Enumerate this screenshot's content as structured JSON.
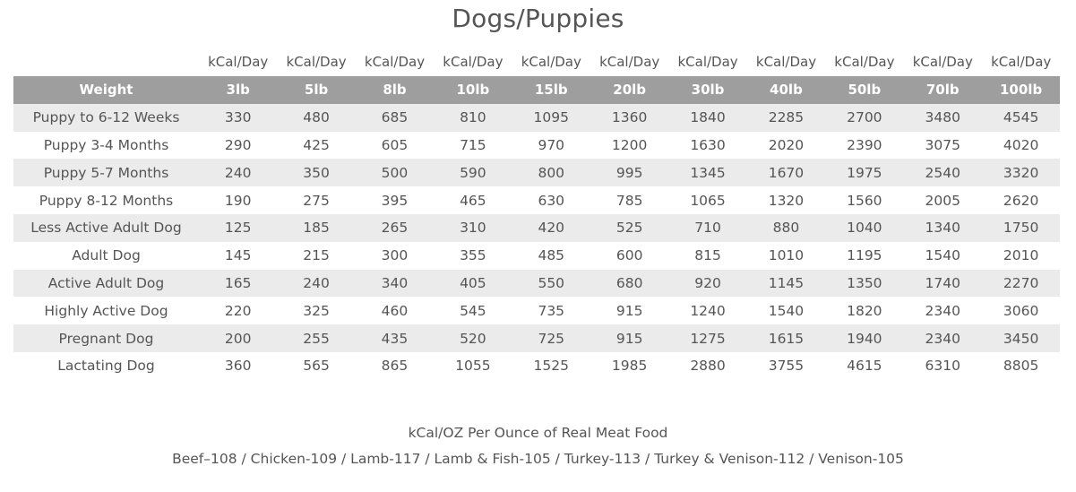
{
  "title": "Dogs/Puppies",
  "unit_label": "kCal/Day",
  "header": {
    "first": "Weight",
    "weights": [
      "3lb",
      "5lb",
      "8lb",
      "10lb",
      "15lb",
      "20lb",
      "30lb",
      "40lb",
      "50lb",
      "70lb",
      "100lb"
    ]
  },
  "rows": [
    {
      "label": "Puppy to 6-12 Weeks",
      "values": [
        "330",
        "480",
        "685",
        "810",
        "1095",
        "1360",
        "1840",
        "2285",
        "2700",
        "3480",
        "4545"
      ]
    },
    {
      "label": "Puppy 3-4 Months",
      "values": [
        "290",
        "425",
        "605",
        "715",
        "970",
        "1200",
        "1630",
        "2020",
        "2390",
        "3075",
        "4020"
      ]
    },
    {
      "label": "Puppy 5-7 Months",
      "values": [
        "240",
        "350",
        "500",
        "590",
        "800",
        "995",
        "1345",
        "1670",
        "1975",
        "2540",
        "3320"
      ]
    },
    {
      "label": "Puppy 8-12 Months",
      "values": [
        "190",
        "275",
        "395",
        "465",
        "630",
        "785",
        "1065",
        "1320",
        "1560",
        "2005",
        "2620"
      ]
    },
    {
      "label": "Less Active Adult Dog",
      "values": [
        "125",
        "185",
        "265",
        "310",
        "420",
        "525",
        "710",
        "880",
        "1040",
        "1340",
        "1750"
      ]
    },
    {
      "label": "Adult Dog",
      "values": [
        "145",
        "215",
        "300",
        "355",
        "485",
        "600",
        "815",
        "1010",
        "1195",
        "1540",
        "2010"
      ]
    },
    {
      "label": "Active Adult Dog",
      "values": [
        "165",
        "240",
        "340",
        "405",
        "550",
        "680",
        "920",
        "1145",
        "1350",
        "1740",
        "2270"
      ]
    },
    {
      "label": "Highly Active Dog",
      "values": [
        "220",
        "325",
        "460",
        "545",
        "735",
        "915",
        "1240",
        "1540",
        "1820",
        "2340",
        "3060"
      ]
    },
    {
      "label": "Pregnant Dog",
      "values": [
        "200",
        "255",
        "435",
        "520",
        "725",
        "915",
        "1275",
        "1615",
        "1940",
        "2340",
        "3450"
      ]
    },
    {
      "label": "Lactating Dog",
      "values": [
        "360",
        "565",
        "865",
        "1055",
        "1525",
        "1985",
        "2880",
        "3755",
        "4615",
        "6310",
        "8805"
      ]
    }
  ],
  "footer": {
    "line1": "kCal/OZ Per Ounce of Real Meat Food",
    "line2": "Beef–108 / Chicken-109 / Lamb-117 / Lamb & Fish-105 / Turkey-113 / Turkey & Venison-112 / Venison-105"
  },
  "colors": {
    "header_bg": "#9e9e9e",
    "stripe_bg": "#ebebeb",
    "text": "#555555"
  }
}
